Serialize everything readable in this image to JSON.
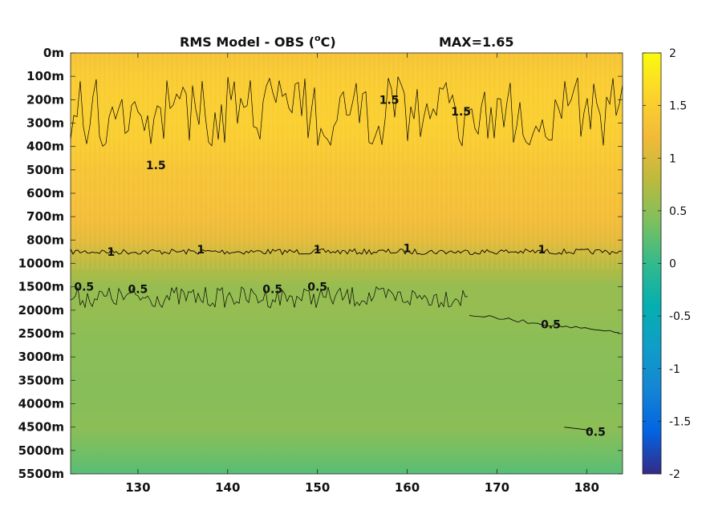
{
  "chart_data": {
    "type": "heatmap",
    "title": "RMS Model - OBS (",
    "title_unit_sup": "o",
    "title_unit_tail": "C)",
    "annotation": "MAX=1.65",
    "x_ticks": [
      130,
      140,
      150,
      160,
      170,
      180
    ],
    "xlim": [
      122.5,
      184
    ],
    "y_ticks": [
      "0m",
      "100m",
      "200m",
      "300m",
      "400m",
      "500m",
      "600m",
      "700m",
      "800m",
      "1000m",
      "1500m",
      "2000m",
      "2500m",
      "3000m",
      "3500m",
      "4000m",
      "4500m",
      "5000m",
      "5500m"
    ],
    "colorbar": {
      "ticks": [
        2,
        1.5,
        1,
        0.5,
        0,
        -0.5,
        -1,
        -1.5,
        -2
      ],
      "clim": [
        -2,
        2
      ],
      "colormap": "parula"
    },
    "depth_profile": [
      {
        "level": "0m",
        "value": 1.32
      },
      {
        "level": "100m",
        "value": 1.45
      },
      {
        "level": "200m",
        "value": 1.5
      },
      {
        "level": "300m",
        "value": 1.52
      },
      {
        "level": "400m",
        "value": 1.45
      },
      {
        "level": "500m",
        "value": 1.35
      },
      {
        "level": "600m",
        "value": 1.3
      },
      {
        "level": "700m",
        "value": 1.25
      },
      {
        "level": "800m",
        "value": 1.1
      },
      {
        "level": "1000m",
        "value": 0.78
      },
      {
        "level": "1500m",
        "value": 0.55
      },
      {
        "level": "2000m",
        "value": 0.55
      },
      {
        "level": "2500m",
        "value": 0.5
      },
      {
        "level": "3000m",
        "value": 0.48
      },
      {
        "level": "3500m",
        "value": 0.47
      },
      {
        "level": "4000m",
        "value": 0.46
      },
      {
        "level": "4500m",
        "value": 0.5
      },
      {
        "level": "5000m",
        "value": 0.35
      },
      {
        "level": "5500m",
        "value": 0.2
      }
    ],
    "contour_labels": [
      {
        "text": "1.5",
        "x": 158,
        "level": "200m"
      },
      {
        "text": "1.5",
        "x": 166,
        "level": "250m"
      },
      {
        "text": "1.5",
        "x": 132,
        "level": "480m"
      },
      {
        "text": "1",
        "x": 127,
        "level": "900m"
      },
      {
        "text": "1",
        "x": 137,
        "level": "880m"
      },
      {
        "text": "1",
        "x": 150,
        "level": "880m"
      },
      {
        "text": "1",
        "x": 160,
        "level": "870m"
      },
      {
        "text": "1",
        "x": 175,
        "level": "880m"
      },
      {
        "text": "0.5",
        "x": 124,
        "level": "1500m"
      },
      {
        "text": "0.5",
        "x": 130,
        "level": "1550m"
      },
      {
        "text": "0.5",
        "x": 145,
        "level": "1550m"
      },
      {
        "text": "0.5",
        "x": 150,
        "level": "1500m"
      },
      {
        "text": "0.5",
        "x": 176,
        "level": "2300m"
      },
      {
        "text": "0.5",
        "x": 181,
        "level": "4600m"
      }
    ]
  }
}
